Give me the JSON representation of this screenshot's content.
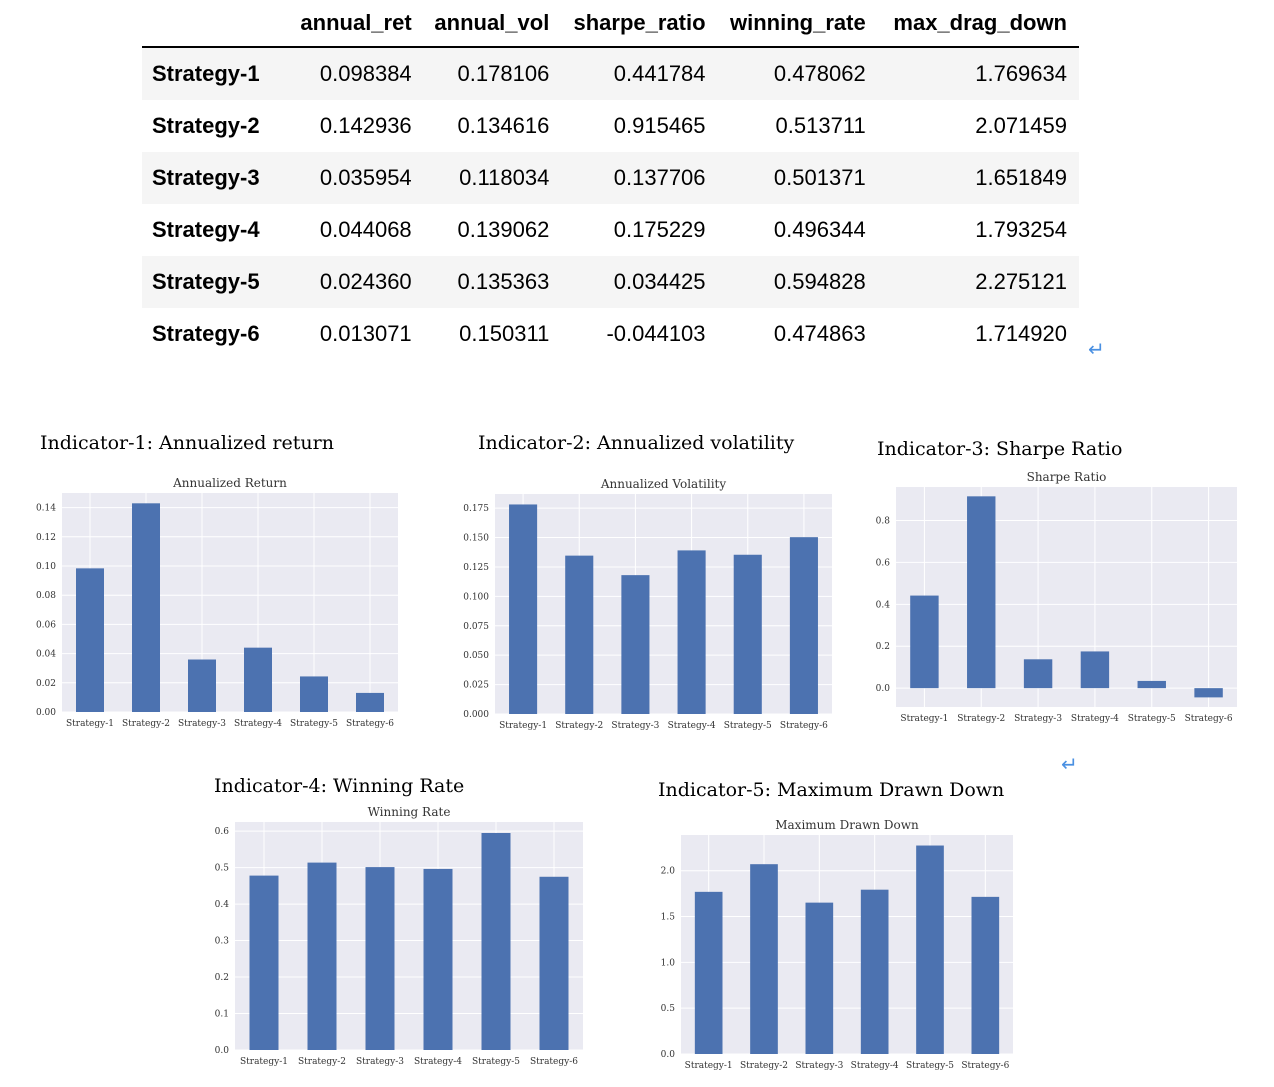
{
  "table": {
    "columns": [
      "annual_ret",
      "annual_vol",
      "sharpe_ratio",
      "winning_rate",
      "max_drag_down"
    ],
    "rows": [
      {
        "name": "Strategy-1",
        "values": [
          "0.098384",
          "0.178106",
          "0.441784",
          "0.478062",
          "1.769634"
        ]
      },
      {
        "name": "Strategy-2",
        "values": [
          "0.142936",
          "0.134616",
          "0.915465",
          "0.513711",
          "2.071459"
        ]
      },
      {
        "name": "Strategy-3",
        "values": [
          "0.035954",
          "0.118034",
          "0.137706",
          "0.501371",
          "1.651849"
        ]
      },
      {
        "name": "Strategy-4",
        "values": [
          "0.044068",
          "0.139062",
          "0.175229",
          "0.496344",
          "1.793254"
        ]
      },
      {
        "name": "Strategy-5",
        "values": [
          "0.024360",
          "0.135363",
          "0.034425",
          "0.594828",
          "2.275121"
        ]
      },
      {
        "name": "Strategy-6",
        "values": [
          "0.013071",
          "0.150311",
          "-0.044103",
          "0.474863",
          "1.714920"
        ]
      }
    ]
  },
  "return_glyph": "↵",
  "chart_data": [
    {
      "heading": "Indicator-1: Annualized return",
      "type": "bar",
      "title": "Annualized Return",
      "categories": [
        "Strategy-1",
        "Strategy-2",
        "Strategy-3",
        "Strategy-4",
        "Strategy-5",
        "Strategy-6"
      ],
      "values": [
        0.098384,
        0.142936,
        0.035954,
        0.044068,
        0.02436,
        0.013071
      ],
      "ylim": [
        0,
        0.15
      ],
      "yticks": [
        0,
        0.02,
        0.04,
        0.06,
        0.08,
        0.1,
        0.12,
        0.14
      ],
      "ytick_labels": [
        "0.00",
        "0.02",
        "0.04",
        "0.06",
        "0.08",
        "0.10",
        "0.12",
        "0.14"
      ],
      "grid": true,
      "bar_color": "#4c72b0"
    },
    {
      "heading": "Indicator-2: Annualized volatility",
      "type": "bar",
      "title": "Annualized Volatility",
      "categories": [
        "Strategy-1",
        "Strategy-2",
        "Strategy-3",
        "Strategy-4",
        "Strategy-5",
        "Strategy-6"
      ],
      "values": [
        0.178106,
        0.134616,
        0.118034,
        0.139062,
        0.135363,
        0.150311
      ],
      "ylim": [
        0,
        0.187
      ],
      "yticks": [
        0,
        0.025,
        0.05,
        0.075,
        0.1,
        0.125,
        0.15,
        0.175
      ],
      "ytick_labels": [
        "0.000",
        "0.025",
        "0.050",
        "0.075",
        "0.100",
        "0.125",
        "0.150",
        "0.175"
      ],
      "grid": true,
      "bar_color": "#4c72b0"
    },
    {
      "heading": "Indicator-3: Sharpe Ratio",
      "type": "bar",
      "title": "Sharpe Ratio",
      "categories": [
        "Strategy-1",
        "Strategy-2",
        "Strategy-3",
        "Strategy-4",
        "Strategy-5",
        "Strategy-6"
      ],
      "values": [
        0.441784,
        0.915465,
        0.137706,
        0.175229,
        0.034425,
        -0.044103
      ],
      "ylim": [
        -0.09,
        0.96
      ],
      "yticks": [
        0,
        0.2,
        0.4,
        0.6,
        0.8
      ],
      "ytick_labels": [
        "0.0",
        "0.2",
        "0.4",
        "0.6",
        "0.8"
      ],
      "grid": true,
      "bar_color": "#4c72b0"
    },
    {
      "heading": "Indicator-4: Winning Rate",
      "type": "bar",
      "title": "Winning Rate",
      "categories": [
        "Strategy-1",
        "Strategy-2",
        "Strategy-3",
        "Strategy-4",
        "Strategy-5",
        "Strategy-6"
      ],
      "values": [
        0.478062,
        0.513711,
        0.501371,
        0.496344,
        0.594828,
        0.474863
      ],
      "ylim": [
        0,
        0.625
      ],
      "yticks": [
        0,
        0.1,
        0.2,
        0.3,
        0.4,
        0.5,
        0.6
      ],
      "ytick_labels": [
        "0.0",
        "0.1",
        "0.2",
        "0.3",
        "0.4",
        "0.5",
        "0.6"
      ],
      "grid": true,
      "bar_color": "#4c72b0"
    },
    {
      "heading": "Indicator-5: Maximum Drawn Down",
      "type": "bar",
      "title": "Maximum Drawn Down",
      "categories": [
        "Strategy-1",
        "Strategy-2",
        "Strategy-3",
        "Strategy-4",
        "Strategy-5",
        "Strategy-6"
      ],
      "values": [
        1.769634,
        2.071459,
        1.651849,
        1.793254,
        2.275121,
        1.71492
      ],
      "ylim": [
        0,
        2.39
      ],
      "yticks": [
        0,
        0.5,
        1.0,
        1.5,
        2.0
      ],
      "ytick_labels": [
        "0.0",
        "0.5",
        "1.0",
        "1.5",
        "2.0"
      ],
      "grid": true,
      "bar_color": "#4c72b0"
    }
  ]
}
